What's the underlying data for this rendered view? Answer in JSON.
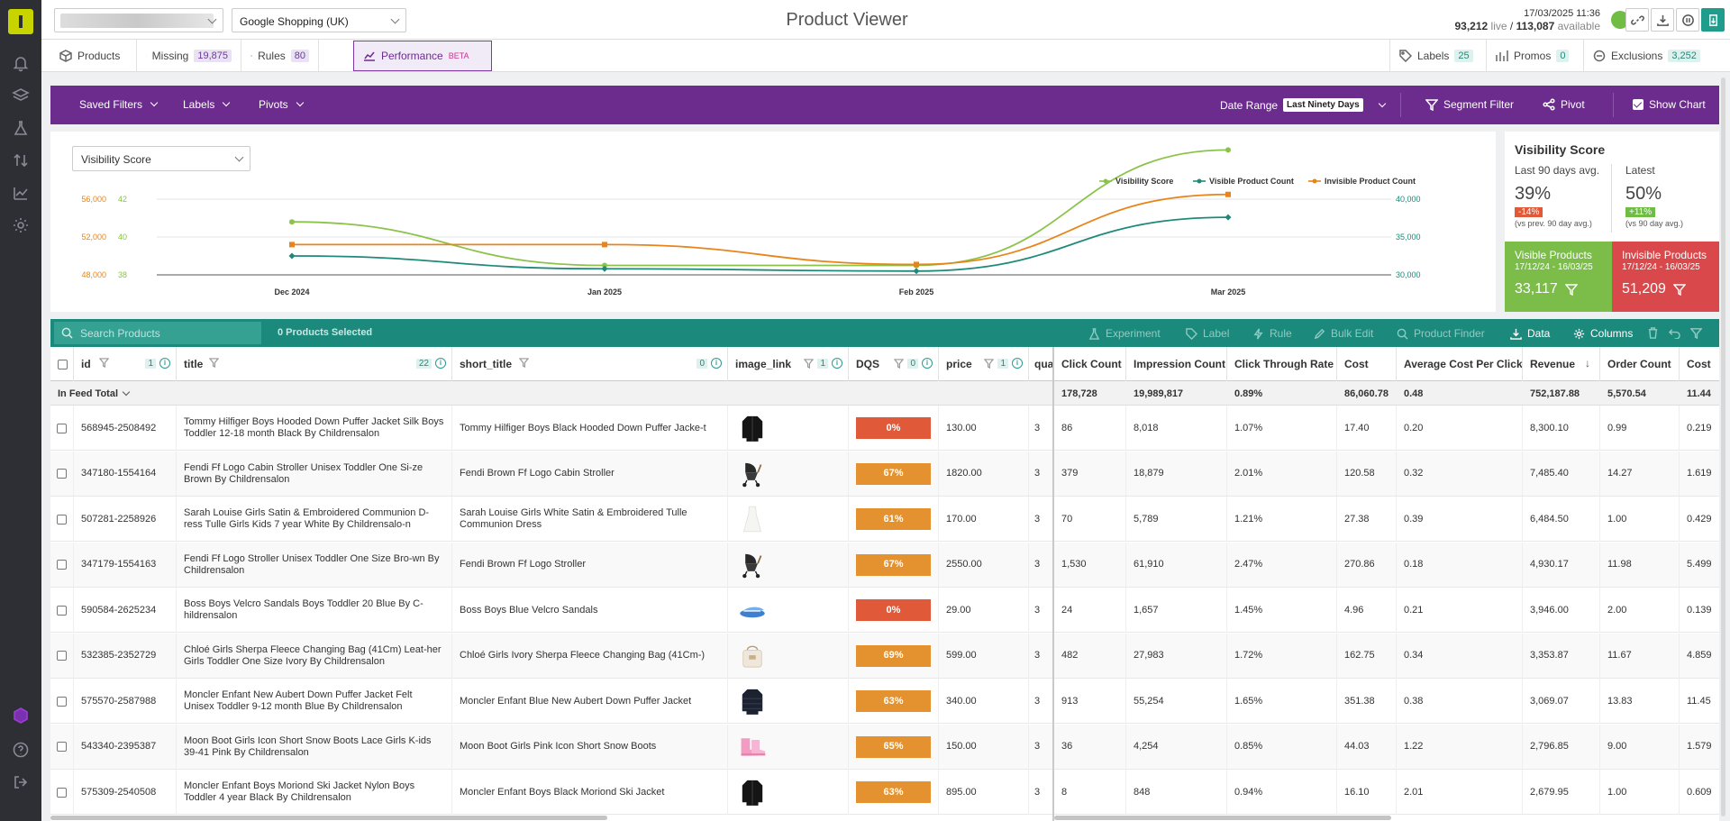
{
  "header": {
    "feed_select": "Google Shopping (UK)",
    "title": "Product Viewer",
    "datetime": "17/03/2025 11:36",
    "live_count": "93,212",
    "live_label": "live",
    "available_count": "113,087",
    "available_label": "available"
  },
  "tabs": [
    {
      "label": "Products",
      "badge": ""
    },
    {
      "label": "Missing",
      "badge": "19,875"
    },
    {
      "label": "Rules",
      "badge": "80"
    },
    {
      "label": "Performance",
      "badge": "BETA"
    },
    {
      "label": "Labels",
      "badge": "25"
    },
    {
      "label": "Promos",
      "badge": "0"
    },
    {
      "label": "Exclusions",
      "badge": "3,252"
    }
  ],
  "filterbar": {
    "saved_filters": "Saved Filters",
    "labels": "Labels",
    "pivots": "Pivots",
    "date_range_label": "Date Range",
    "date_range_value": "Last Ninety Days",
    "segment_filter": "Segment Filter",
    "pivot": "Pivot",
    "show_chart": "Show Chart"
  },
  "chart_data": {
    "type": "line",
    "metric_select": "Visibility Score",
    "categories": [
      "Dec 2024",
      "Jan 2025",
      "Feb 2025",
      "Mar 2025"
    ],
    "series": [
      {
        "name": "Visibility Score",
        "color": "#8bc34a",
        "axis": "left-inner",
        "values": [
          40.8,
          38.5,
          38.5,
          44.6
        ]
      },
      {
        "name": "Visible Product Count",
        "color": "#1f8a7a",
        "axis": "right",
        "values": [
          32500,
          30800,
          30500,
          37600
        ]
      },
      {
        "name": "Invisible Product Count",
        "color": "#e8841a",
        "axis": "left-outer",
        "values": [
          51200,
          51200,
          49100,
          56500
        ]
      }
    ],
    "left_outer_ticks": [
      "56,000",
      "52,000",
      "48,000"
    ],
    "left_inner_ticks": [
      "42",
      "40",
      "38"
    ],
    "right_ticks": [
      "40,000",
      "35,000",
      "30,000"
    ],
    "ylim_left_outer": [
      48000,
      56000
    ],
    "ylim_left_inner": [
      38,
      42
    ],
    "ylim_right": [
      30000,
      40000
    ],
    "legend": "top-right",
    "grid": true
  },
  "vis_panel": {
    "title": "Visibility Score",
    "avg_label": "Last 90 days avg.",
    "avg_value": "39%",
    "avg_change": "-14%",
    "avg_note": "(vs prev. 90 day avg.)",
    "latest_label": "Latest",
    "latest_value": "50%",
    "latest_change": "+11%",
    "latest_note": "(vs 90 day avg.)",
    "visible_title": "Visible Products",
    "visible_dates": "17/12/24 - 16/03/25",
    "visible_value": "33,117",
    "invisible_title": "Invisible Products",
    "invisible_dates": "17/12/24 - 16/03/25",
    "invisible_value": "51,209"
  },
  "table_toolbar": {
    "search_placeholder": "Search Products",
    "selected": "0 Products Selected",
    "experiment": "Experiment",
    "label": "Label",
    "rule": "Rule",
    "bulk_edit": "Bulk Edit",
    "product_finder": "Product Finder",
    "data": "Data",
    "columns": "Columns"
  },
  "columns": {
    "id": "id",
    "id_count": "1",
    "title": "title",
    "title_count": "22",
    "short_title": "short_title",
    "short_title_count": "0",
    "image_link": "image_link",
    "image_link_count": "1",
    "dqs": "DQS",
    "dqs_count": "0",
    "price": "price",
    "price_count": "1",
    "quantity": "quar",
    "clicks": "Click Count",
    "impressions": "Impression Count",
    "ctr": "Click Through Rate",
    "cost": "Cost",
    "cpc": "Average Cost Per Click",
    "revenue": "Revenue",
    "orders": "Order Count",
    "cost2": "Cost"
  },
  "totals": {
    "label": "In Feed Total",
    "clicks": "178,728",
    "impressions": "19,989,817",
    "ctr": "0.89%",
    "cost": "86,060.78",
    "cpc": "0.48",
    "revenue": "752,187.88",
    "orders": "5,570.54",
    "cost2": "11.44"
  },
  "rows": [
    {
      "id": "568945-2508492",
      "title": "Tommy Hilfiger Boys Hooded Down Puffer Jacket Silk Boys Toddler 12-18 month Black By Childrensalon",
      "short_title": "Tommy Hilfiger Boys Black Hooded Down Puffer Jacke-t",
      "image": "jacket-black",
      "dqs": "0%",
      "dqs_color": "#e05a3a",
      "price": "130.00",
      "qty": "3",
      "clicks": "86",
      "impressions": "8,018",
      "ctr": "1.07%",
      "cost": "17.40",
      "cpc": "0.20",
      "revenue": "8,300.10",
      "orders": "0.99",
      "cost2": "0.219"
    },
    {
      "id": "347180-1554164",
      "title": "Fendi Ff Logo Cabin Stroller Unisex Toddler One Si-ze Brown By Childrensalon",
      "short_title": "Fendi Brown Ff Logo Cabin Stroller",
      "image": "stroller",
      "dqs": "67%",
      "dqs_color": "#e3922f",
      "price": "1820.00",
      "qty": "3",
      "clicks": "379",
      "impressions": "18,879",
      "ctr": "2.01%",
      "cost": "120.58",
      "cpc": "0.32",
      "revenue": "7,485.40",
      "orders": "14.27",
      "cost2": "1.619"
    },
    {
      "id": "507281-2258926",
      "title": "Sarah Louise Girls Satin & Embroidered Communion D-ress Tulle Girls Kids 7 year White By Childrensalo-n",
      "short_title": "Sarah Louise Girls White Satin & Embroidered Tulle Communion Dress",
      "image": "dress",
      "dqs": "61%",
      "dqs_color": "#e3922f",
      "price": "170.00",
      "qty": "3",
      "clicks": "70",
      "impressions": "5,789",
      "ctr": "1.21%",
      "cost": "27.38",
      "cpc": "0.39",
      "revenue": "6,484.50",
      "orders": "1.00",
      "cost2": "0.429"
    },
    {
      "id": "347179-1554163",
      "title": "Fendi Ff Logo Stroller Unisex Toddler One Size Bro-wn By Childrensalon",
      "short_title": "Fendi Brown Ff Logo Stroller",
      "image": "stroller",
      "dqs": "67%",
      "dqs_color": "#e3922f",
      "price": "2550.00",
      "qty": "3",
      "clicks": "1,530",
      "impressions": "61,910",
      "ctr": "2.47%",
      "cost": "270.86",
      "cpc": "0.18",
      "revenue": "4,930.17",
      "orders": "11.98",
      "cost2": "5.499"
    },
    {
      "id": "590584-2625234",
      "title": "Boss Boys Velcro Sandals Boys Toddler 20 Blue By C-hildrensalon",
      "short_title": "Boss Boys Blue Velcro Sandals",
      "image": "sandals",
      "dqs": "0%",
      "dqs_color": "#e05a3a",
      "price": "29.00",
      "qty": "3",
      "clicks": "24",
      "impressions": "1,657",
      "ctr": "1.45%",
      "cost": "4.96",
      "cpc": "0.21",
      "revenue": "3,946.00",
      "orders": "2.00",
      "cost2": "0.139"
    },
    {
      "id": "532385-2352729",
      "title": "Chloé Girls Sherpa Fleece Changing Bag (41Cm) Leat-her Girls Toddler One Size Ivory By Childrensalon",
      "short_title": "Chloé Girls Ivory Sherpa Fleece Changing Bag (41Cm-)",
      "image": "bag",
      "dqs": "69%",
      "dqs_color": "#e3922f",
      "price": "599.00",
      "qty": "3",
      "clicks": "482",
      "impressions": "27,983",
      "ctr": "1.72%",
      "cost": "162.75",
      "cpc": "0.34",
      "revenue": "3,353.87",
      "orders": "11.67",
      "cost2": "4.859"
    },
    {
      "id": "575570-2587988",
      "title": "Moncler Enfant New Aubert Down Puffer Jacket Felt Unisex Toddler 9-12 month Blue By Childrensalon",
      "short_title": "Moncler Enfant Blue New Aubert Down Puffer Jacket",
      "image": "jacket-navy",
      "dqs": "63%",
      "dqs_color": "#e3922f",
      "price": "340.00",
      "qty": "3",
      "clicks": "913",
      "impressions": "55,254",
      "ctr": "1.65%",
      "cost": "351.38",
      "cpc": "0.38",
      "revenue": "3,069.07",
      "orders": "13.83",
      "cost2": "11.45"
    },
    {
      "id": "543340-2395387",
      "title": "Moon Boot Girls Icon Short Snow Boots Lace Girls K-ids 39-41 Pink By Childrensalon",
      "short_title": "Moon Boot Girls Pink Icon Short Snow Boots",
      "image": "boots",
      "dqs": "65%",
      "dqs_color": "#e3922f",
      "price": "150.00",
      "qty": "3",
      "clicks": "36",
      "impressions": "4,254",
      "ctr": "0.85%",
      "cost": "44.03",
      "cpc": "1.22",
      "revenue": "2,796.85",
      "orders": "9.00",
      "cost2": "1.579"
    },
    {
      "id": "575309-2540508",
      "title": "Moncler Enfant Boys Moriond Ski Jacket Nylon Boys Toddler 4 year Black By Childrensalon",
      "short_title": "Moncler Enfant Boys Black Moriond Ski Jacket",
      "image": "jacket-black",
      "dqs": "63%",
      "dqs_color": "#e3922f",
      "price": "895.00",
      "qty": "3",
      "clicks": "8",
      "impressions": "848",
      "ctr": "0.94%",
      "cost": "16.10",
      "cpc": "2.01",
      "revenue": "2,679.95",
      "orders": "1.00",
      "cost2": "0.609"
    }
  ]
}
